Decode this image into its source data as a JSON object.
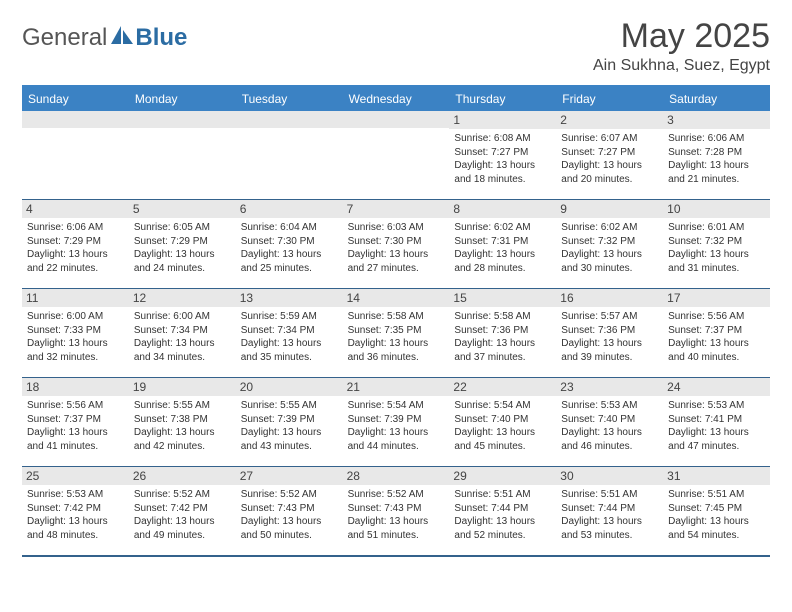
{
  "brand": {
    "general": "General",
    "blue": "Blue"
  },
  "title": "May 2025",
  "location": "Ain Sukhna, Suez, Egypt",
  "colors": {
    "header_bar": "#3b82c4",
    "header_text": "#ffffff",
    "grid_line": "#34628c",
    "day_num_bg": "#e8e8e8",
    "text": "#333333",
    "logo_blue": "#2b6ca3"
  },
  "weekdays": [
    "Sunday",
    "Monday",
    "Tuesday",
    "Wednesday",
    "Thursday",
    "Friday",
    "Saturday"
  ],
  "weeks": [
    [
      {
        "n": "",
        "sunrise": "",
        "sunset": "",
        "daylight": ""
      },
      {
        "n": "",
        "sunrise": "",
        "sunset": "",
        "daylight": ""
      },
      {
        "n": "",
        "sunrise": "",
        "sunset": "",
        "daylight": ""
      },
      {
        "n": "",
        "sunrise": "",
        "sunset": "",
        "daylight": ""
      },
      {
        "n": "1",
        "sunrise": "Sunrise: 6:08 AM",
        "sunset": "Sunset: 7:27 PM",
        "daylight": "Daylight: 13 hours and 18 minutes."
      },
      {
        "n": "2",
        "sunrise": "Sunrise: 6:07 AM",
        "sunset": "Sunset: 7:27 PM",
        "daylight": "Daylight: 13 hours and 20 minutes."
      },
      {
        "n": "3",
        "sunrise": "Sunrise: 6:06 AM",
        "sunset": "Sunset: 7:28 PM",
        "daylight": "Daylight: 13 hours and 21 minutes."
      }
    ],
    [
      {
        "n": "4",
        "sunrise": "Sunrise: 6:06 AM",
        "sunset": "Sunset: 7:29 PM",
        "daylight": "Daylight: 13 hours and 22 minutes."
      },
      {
        "n": "5",
        "sunrise": "Sunrise: 6:05 AM",
        "sunset": "Sunset: 7:29 PM",
        "daylight": "Daylight: 13 hours and 24 minutes."
      },
      {
        "n": "6",
        "sunrise": "Sunrise: 6:04 AM",
        "sunset": "Sunset: 7:30 PM",
        "daylight": "Daylight: 13 hours and 25 minutes."
      },
      {
        "n": "7",
        "sunrise": "Sunrise: 6:03 AM",
        "sunset": "Sunset: 7:30 PM",
        "daylight": "Daylight: 13 hours and 27 minutes."
      },
      {
        "n": "8",
        "sunrise": "Sunrise: 6:02 AM",
        "sunset": "Sunset: 7:31 PM",
        "daylight": "Daylight: 13 hours and 28 minutes."
      },
      {
        "n": "9",
        "sunrise": "Sunrise: 6:02 AM",
        "sunset": "Sunset: 7:32 PM",
        "daylight": "Daylight: 13 hours and 30 minutes."
      },
      {
        "n": "10",
        "sunrise": "Sunrise: 6:01 AM",
        "sunset": "Sunset: 7:32 PM",
        "daylight": "Daylight: 13 hours and 31 minutes."
      }
    ],
    [
      {
        "n": "11",
        "sunrise": "Sunrise: 6:00 AM",
        "sunset": "Sunset: 7:33 PM",
        "daylight": "Daylight: 13 hours and 32 minutes."
      },
      {
        "n": "12",
        "sunrise": "Sunrise: 6:00 AM",
        "sunset": "Sunset: 7:34 PM",
        "daylight": "Daylight: 13 hours and 34 minutes."
      },
      {
        "n": "13",
        "sunrise": "Sunrise: 5:59 AM",
        "sunset": "Sunset: 7:34 PM",
        "daylight": "Daylight: 13 hours and 35 minutes."
      },
      {
        "n": "14",
        "sunrise": "Sunrise: 5:58 AM",
        "sunset": "Sunset: 7:35 PM",
        "daylight": "Daylight: 13 hours and 36 minutes."
      },
      {
        "n": "15",
        "sunrise": "Sunrise: 5:58 AM",
        "sunset": "Sunset: 7:36 PM",
        "daylight": "Daylight: 13 hours and 37 minutes."
      },
      {
        "n": "16",
        "sunrise": "Sunrise: 5:57 AM",
        "sunset": "Sunset: 7:36 PM",
        "daylight": "Daylight: 13 hours and 39 minutes."
      },
      {
        "n": "17",
        "sunrise": "Sunrise: 5:56 AM",
        "sunset": "Sunset: 7:37 PM",
        "daylight": "Daylight: 13 hours and 40 minutes."
      }
    ],
    [
      {
        "n": "18",
        "sunrise": "Sunrise: 5:56 AM",
        "sunset": "Sunset: 7:37 PM",
        "daylight": "Daylight: 13 hours and 41 minutes."
      },
      {
        "n": "19",
        "sunrise": "Sunrise: 5:55 AM",
        "sunset": "Sunset: 7:38 PM",
        "daylight": "Daylight: 13 hours and 42 minutes."
      },
      {
        "n": "20",
        "sunrise": "Sunrise: 5:55 AM",
        "sunset": "Sunset: 7:39 PM",
        "daylight": "Daylight: 13 hours and 43 minutes."
      },
      {
        "n": "21",
        "sunrise": "Sunrise: 5:54 AM",
        "sunset": "Sunset: 7:39 PM",
        "daylight": "Daylight: 13 hours and 44 minutes."
      },
      {
        "n": "22",
        "sunrise": "Sunrise: 5:54 AM",
        "sunset": "Sunset: 7:40 PM",
        "daylight": "Daylight: 13 hours and 45 minutes."
      },
      {
        "n": "23",
        "sunrise": "Sunrise: 5:53 AM",
        "sunset": "Sunset: 7:40 PM",
        "daylight": "Daylight: 13 hours and 46 minutes."
      },
      {
        "n": "24",
        "sunrise": "Sunrise: 5:53 AM",
        "sunset": "Sunset: 7:41 PM",
        "daylight": "Daylight: 13 hours and 47 minutes."
      }
    ],
    [
      {
        "n": "25",
        "sunrise": "Sunrise: 5:53 AM",
        "sunset": "Sunset: 7:42 PM",
        "daylight": "Daylight: 13 hours and 48 minutes."
      },
      {
        "n": "26",
        "sunrise": "Sunrise: 5:52 AM",
        "sunset": "Sunset: 7:42 PM",
        "daylight": "Daylight: 13 hours and 49 minutes."
      },
      {
        "n": "27",
        "sunrise": "Sunrise: 5:52 AM",
        "sunset": "Sunset: 7:43 PM",
        "daylight": "Daylight: 13 hours and 50 minutes."
      },
      {
        "n": "28",
        "sunrise": "Sunrise: 5:52 AM",
        "sunset": "Sunset: 7:43 PM",
        "daylight": "Daylight: 13 hours and 51 minutes."
      },
      {
        "n": "29",
        "sunrise": "Sunrise: 5:51 AM",
        "sunset": "Sunset: 7:44 PM",
        "daylight": "Daylight: 13 hours and 52 minutes."
      },
      {
        "n": "30",
        "sunrise": "Sunrise: 5:51 AM",
        "sunset": "Sunset: 7:44 PM",
        "daylight": "Daylight: 13 hours and 53 minutes."
      },
      {
        "n": "31",
        "sunrise": "Sunrise: 5:51 AM",
        "sunset": "Sunset: 7:45 PM",
        "daylight": "Daylight: 13 hours and 54 minutes."
      }
    ]
  ]
}
